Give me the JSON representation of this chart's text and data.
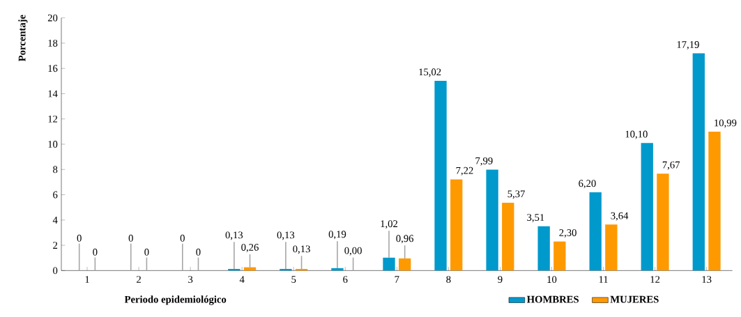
{
  "chart_data": {
    "type": "bar",
    "xlabel": "Periodo epidemiológico",
    "ylabel": "Porcentaje",
    "categories": [
      "1",
      "2",
      "3",
      "4",
      "5",
      "6",
      "7",
      "8",
      "9",
      "10",
      "11",
      "12",
      "13"
    ],
    "series": [
      {
        "name": "HOMBRES",
        "color": "#0099cc",
        "values": [
          0,
          0,
          0,
          0.13,
          0.13,
          0.19,
          1.02,
          15.02,
          7.99,
          3.51,
          6.2,
          10.1,
          17.19
        ],
        "value_labels": [
          "0",
          "0",
          "0",
          "0,13",
          "0,13",
          "0,19",
          "1,02",
          "15,02",
          "7,99",
          "3,51",
          "6,20",
          "10,10",
          "17,19"
        ]
      },
      {
        "name": "MUJERES",
        "color": "#ff9900",
        "values": [
          0,
          0,
          0,
          0.26,
          0.13,
          0,
          0.96,
          7.22,
          5.37,
          2.3,
          3.64,
          7.67,
          10.99
        ],
        "value_labels": [
          "0",
          "0",
          "0",
          "0,26",
          "0,13",
          "0,00",
          "0,96",
          "7,22",
          "5,37",
          "2,30",
          "3,64",
          "7,67",
          "10,99"
        ]
      }
    ],
    "ylim": [
      0,
      20
    ],
    "yticks": [
      0,
      2,
      4,
      6,
      8,
      10,
      12,
      14,
      16,
      18,
      20
    ],
    "grid": false,
    "legend": "bottom"
  }
}
